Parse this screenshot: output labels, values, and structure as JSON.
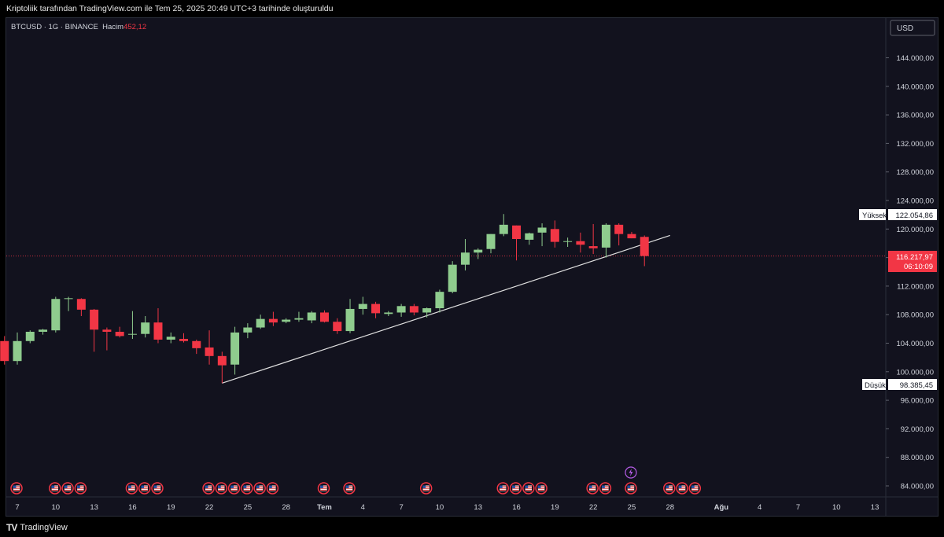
{
  "header": {
    "caption": "Kriptoliik tarafından TradingView.com ile Tem 25, 2025 20:49 UTC+3 tarihinde oluşturuldu"
  },
  "legend": {
    "symbol": "BTCUSD · 1G · BINANCE",
    "volume_label": "Hacim",
    "volume_value": "452,12"
  },
  "footer": {
    "logo_mark": "TV",
    "logo_text": "TradingView"
  },
  "price_axis": {
    "currency": "USD",
    "ticks": [
      "144.000,00",
      "140.000,00",
      "136.000,00",
      "132.000,00",
      "128.000,00",
      "124.000,00",
      "120.000,00",
      "116.000,00",
      "112.000,00",
      "108.000,00",
      "104.000,00",
      "100.000,00",
      "96.000,00",
      "92.000,00",
      "88.000,00",
      "84.000,00"
    ],
    "high_label": "Yüksek",
    "high_value": "122.054,86",
    "low_label": "Düşük",
    "low_value": "98.385,45",
    "last_price": "116.217,97",
    "countdown": "06:10:09"
  },
  "colors": {
    "up": "#8fcc8e",
    "down": "#f23645",
    "background": "#12121e",
    "trendline": "#e0e0e0",
    "event_flag": "#f23645",
    "lightning": "#b55ce6"
  },
  "chart_data": {
    "type": "candlestick",
    "title": "",
    "ylim": [
      82500,
      147500
    ],
    "x_tick_labels": [
      {
        "label": "7",
        "day": 0
      },
      {
        "label": "10",
        "day": 3
      },
      {
        "label": "13",
        "day": 6
      },
      {
        "label": "16",
        "day": 9
      },
      {
        "label": "19",
        "day": 12
      },
      {
        "label": "22",
        "day": 15
      },
      {
        "label": "25",
        "day": 18
      },
      {
        "label": "28",
        "day": 21
      },
      {
        "label": "Tem",
        "day": 24
      },
      {
        "label": "4",
        "day": 27
      },
      {
        "label": "7",
        "day": 30
      },
      {
        "label": "10",
        "day": 33
      },
      {
        "label": "13",
        "day": 36
      },
      {
        "label": "16",
        "day": 39
      },
      {
        "label": "19",
        "day": 42
      },
      {
        "label": "22",
        "day": 45
      },
      {
        "label": "25",
        "day": 48
      },
      {
        "label": "28",
        "day": 51
      },
      {
        "label": "Ağu",
        "day": 55
      },
      {
        "label": "4",
        "day": 58
      },
      {
        "label": "7",
        "day": 61
      },
      {
        "label": "10",
        "day": 64
      },
      {
        "label": "13",
        "day": 67
      }
    ],
    "candles": [
      {
        "date": "2025-06-06",
        "o": 104300,
        "h": 105000,
        "l": 101000,
        "c": 101500
      },
      {
        "date": "2025-06-07",
        "o": 101500,
        "h": 105500,
        "l": 101000,
        "c": 104300
      },
      {
        "date": "2025-06-08",
        "o": 104300,
        "h": 105800,
        "l": 104000,
        "c": 105600
      },
      {
        "date": "2025-06-09",
        "o": 105600,
        "h": 106000,
        "l": 105200,
        "c": 105900
      },
      {
        "date": "2025-06-10",
        "o": 105800,
        "h": 110500,
        "l": 105500,
        "c": 110200
      },
      {
        "date": "2025-06-11",
        "o": 110200,
        "h": 110500,
        "l": 108500,
        "c": 110300
      },
      {
        "date": "2025-06-12",
        "o": 110200,
        "h": 110300,
        "l": 107800,
        "c": 108700
      },
      {
        "date": "2025-06-13",
        "o": 108700,
        "h": 108800,
        "l": 102800,
        "c": 105900
      },
      {
        "date": "2025-06-14",
        "o": 105900,
        "h": 106200,
        "l": 103000,
        "c": 105600
      },
      {
        "date": "2025-06-15",
        "o": 105600,
        "h": 106300,
        "l": 104800,
        "c": 105000
      },
      {
        "date": "2025-06-16",
        "o": 105200,
        "h": 108500,
        "l": 104600,
        "c": 105300
      },
      {
        "date": "2025-06-17",
        "o": 105300,
        "h": 107800,
        "l": 104800,
        "c": 106900
      },
      {
        "date": "2025-06-18",
        "o": 106900,
        "h": 108900,
        "l": 104000,
        "c": 104500
      },
      {
        "date": "2025-06-19",
        "o": 104500,
        "h": 105500,
        "l": 104000,
        "c": 104900
      },
      {
        "date": "2025-06-20",
        "o": 104600,
        "h": 105400,
        "l": 104100,
        "c": 104300
      },
      {
        "date": "2025-06-21",
        "o": 104300,
        "h": 104500,
        "l": 102500,
        "c": 103300
      },
      {
        "date": "2025-06-22",
        "o": 103400,
        "h": 105800,
        "l": 101000,
        "c": 102200
      },
      {
        "date": "2025-06-23",
        "o": 102200,
        "h": 102800,
        "l": 98400,
        "c": 100900
      },
      {
        "date": "2025-06-24",
        "o": 101000,
        "h": 106300,
        "l": 99600,
        "c": 105500
      },
      {
        "date": "2025-06-25",
        "o": 105500,
        "h": 106800,
        "l": 104700,
        "c": 106200
      },
      {
        "date": "2025-06-26",
        "o": 106200,
        "h": 108000,
        "l": 106000,
        "c": 107400
      },
      {
        "date": "2025-06-27",
        "o": 107400,
        "h": 108400,
        "l": 106400,
        "c": 106900
      },
      {
        "date": "2025-06-28",
        "o": 107000,
        "h": 107500,
        "l": 106800,
        "c": 107300
      },
      {
        "date": "2025-06-29",
        "o": 107300,
        "h": 108400,
        "l": 107000,
        "c": 107500
      },
      {
        "date": "2025-06-30",
        "o": 107200,
        "h": 108500,
        "l": 106800,
        "c": 108300
      },
      {
        "date": "2025-07-01",
        "o": 108300,
        "h": 108600,
        "l": 106900,
        "c": 107000
      },
      {
        "date": "2025-07-02",
        "o": 107000,
        "h": 107500,
        "l": 105300,
        "c": 105700
      },
      {
        "date": "2025-07-03",
        "o": 105700,
        "h": 110200,
        "l": 105400,
        "c": 108800
      },
      {
        "date": "2025-07-04",
        "o": 108800,
        "h": 110500,
        "l": 108000,
        "c": 109500
      },
      {
        "date": "2025-07-05",
        "o": 109500,
        "h": 109800,
        "l": 107500,
        "c": 108200
      },
      {
        "date": "2025-07-06",
        "o": 108100,
        "h": 108500,
        "l": 107800,
        "c": 108300
      },
      {
        "date": "2025-07-07",
        "o": 108300,
        "h": 109500,
        "l": 107700,
        "c": 109200
      },
      {
        "date": "2025-07-08",
        "o": 109200,
        "h": 109500,
        "l": 107900,
        "c": 108300
      },
      {
        "date": "2025-07-09",
        "o": 108300,
        "h": 109000,
        "l": 107600,
        "c": 108900
      },
      {
        "date": "2025-07-10",
        "o": 108900,
        "h": 111500,
        "l": 108300,
        "c": 111200
      },
      {
        "date": "2025-07-11",
        "o": 111200,
        "h": 115500,
        "l": 111000,
        "c": 115000
      },
      {
        "date": "2025-07-12",
        "o": 115000,
        "h": 118600,
        "l": 114200,
        "c": 116700
      },
      {
        "date": "2025-07-13",
        "o": 116700,
        "h": 117300,
        "l": 115800,
        "c": 117100
      },
      {
        "date": "2025-07-14",
        "o": 117200,
        "h": 119300,
        "l": 116600,
        "c": 119300
      },
      {
        "date": "2025-07-15",
        "o": 119300,
        "h": 122100,
        "l": 119000,
        "c": 120600
      },
      {
        "date": "2025-07-16",
        "o": 120500,
        "h": 120500,
        "l": 115600,
        "c": 118600
      },
      {
        "date": "2025-07-17",
        "o": 118500,
        "h": 119500,
        "l": 117800,
        "c": 119400
      },
      {
        "date": "2025-07-18",
        "o": 119500,
        "h": 120800,
        "l": 117600,
        "c": 120200
      },
      {
        "date": "2025-07-19",
        "o": 120000,
        "h": 121200,
        "l": 117400,
        "c": 118200
      },
      {
        "date": "2025-07-20",
        "o": 118200,
        "h": 118800,
        "l": 117500,
        "c": 118300
      },
      {
        "date": "2025-07-21",
        "o": 118300,
        "h": 119500,
        "l": 116700,
        "c": 117800
      },
      {
        "date": "2025-07-22",
        "o": 117600,
        "h": 120700,
        "l": 116500,
        "c": 117300
      },
      {
        "date": "2025-07-23",
        "o": 117400,
        "h": 120800,
        "l": 116000,
        "c": 120600
      },
      {
        "date": "2025-07-24",
        "o": 120600,
        "h": 120800,
        "l": 117700,
        "c": 119300
      },
      {
        "date": "2025-07-25",
        "o": 119300,
        "h": 119600,
        "l": 118700,
        "c": 118700
      },
      {
        "date": "2025-07-26",
        "o": 118900,
        "h": 119100,
        "l": 114800,
        "c": 116218
      }
    ],
    "trendline": {
      "from": {
        "date": "2025-06-23",
        "price": 98400
      },
      "to": {
        "date": "2025-07-28",
        "price": 119100
      }
    },
    "event_flag_days": [
      0,
      3,
      4,
      5,
      9,
      10,
      11,
      15,
      16,
      17,
      18,
      19,
      20,
      24,
      26,
      32,
      38,
      39,
      40,
      41,
      45,
      46,
      48,
      51,
      52,
      53
    ],
    "lightning_day": 48
  }
}
